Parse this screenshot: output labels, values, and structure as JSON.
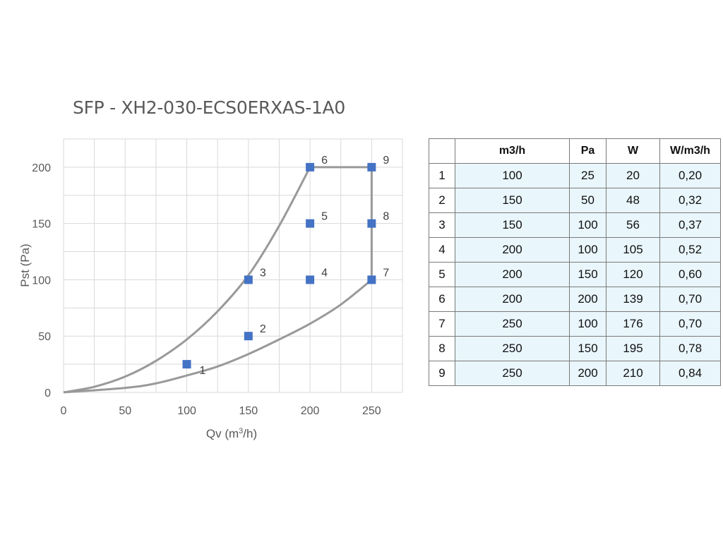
{
  "chart_data": {
    "type": "scatter",
    "title": "SFP - XH2-030-ECS0ERXAS-1A0",
    "xlabel": "Qv (m",
    "xlabel_sup": "3",
    "xlabel_suffix": "/h)",
    "ylabel": "Pst (Pa)",
    "xlim": [
      0,
      275
    ],
    "ylim": [
      0,
      225
    ],
    "x_ticks": [
      0,
      50,
      100,
      150,
      200,
      250
    ],
    "y_ticks": [
      0,
      50,
      100,
      150,
      200
    ],
    "grid": true,
    "points": [
      {
        "label": "1",
        "x": 100,
        "y": 25
      },
      {
        "label": "2",
        "x": 150,
        "y": 50
      },
      {
        "label": "3",
        "x": 150,
        "y": 100
      },
      {
        "label": "4",
        "x": 200,
        "y": 100
      },
      {
        "label": "5",
        "x": 200,
        "y": 150
      },
      {
        "label": "6",
        "x": 200,
        "y": 200
      },
      {
        "label": "7",
        "x": 250,
        "y": 100
      },
      {
        "label": "8",
        "x": 250,
        "y": 150
      },
      {
        "label": "9",
        "x": 250,
        "y": 200
      }
    ],
    "upper_curve": [
      [
        0,
        0
      ],
      [
        25,
        5
      ],
      [
        50,
        14
      ],
      [
        75,
        28
      ],
      [
        100,
        47
      ],
      [
        125,
        72
      ],
      [
        150,
        104
      ],
      [
        175,
        148
      ],
      [
        200,
        200
      ]
    ],
    "lower_curve": [
      [
        0,
        0
      ],
      [
        50,
        4
      ],
      [
        75,
        8
      ],
      [
        100,
        15
      ],
      [
        125,
        23
      ],
      [
        150,
        34
      ],
      [
        175,
        47
      ],
      [
        200,
        61
      ],
      [
        225,
        78
      ],
      [
        250,
        100
      ]
    ],
    "envelope": [
      [
        200,
        200
      ],
      [
        250,
        200
      ],
      [
        250,
        100
      ]
    ],
    "marker_color": "#4472c4",
    "curve_color": "#999999"
  },
  "table": {
    "headers": [
      "",
      "m3/h",
      "Pa",
      "W",
      "W/m3/h"
    ],
    "rows": [
      [
        "1",
        "100",
        "25",
        "20",
        "0,20"
      ],
      [
        "2",
        "150",
        "50",
        "48",
        "0,32"
      ],
      [
        "3",
        "150",
        "100",
        "56",
        "0,37"
      ],
      [
        "4",
        "200",
        "100",
        "105",
        "0,52"
      ],
      [
        "5",
        "200",
        "150",
        "120",
        "0,60"
      ],
      [
        "6",
        "200",
        "200",
        "139",
        "0,70"
      ],
      [
        "7",
        "250",
        "100",
        "176",
        "0,70"
      ],
      [
        "8",
        "250",
        "150",
        "195",
        "0,78"
      ],
      [
        "9",
        "250",
        "200",
        "210",
        "0,84"
      ]
    ]
  }
}
